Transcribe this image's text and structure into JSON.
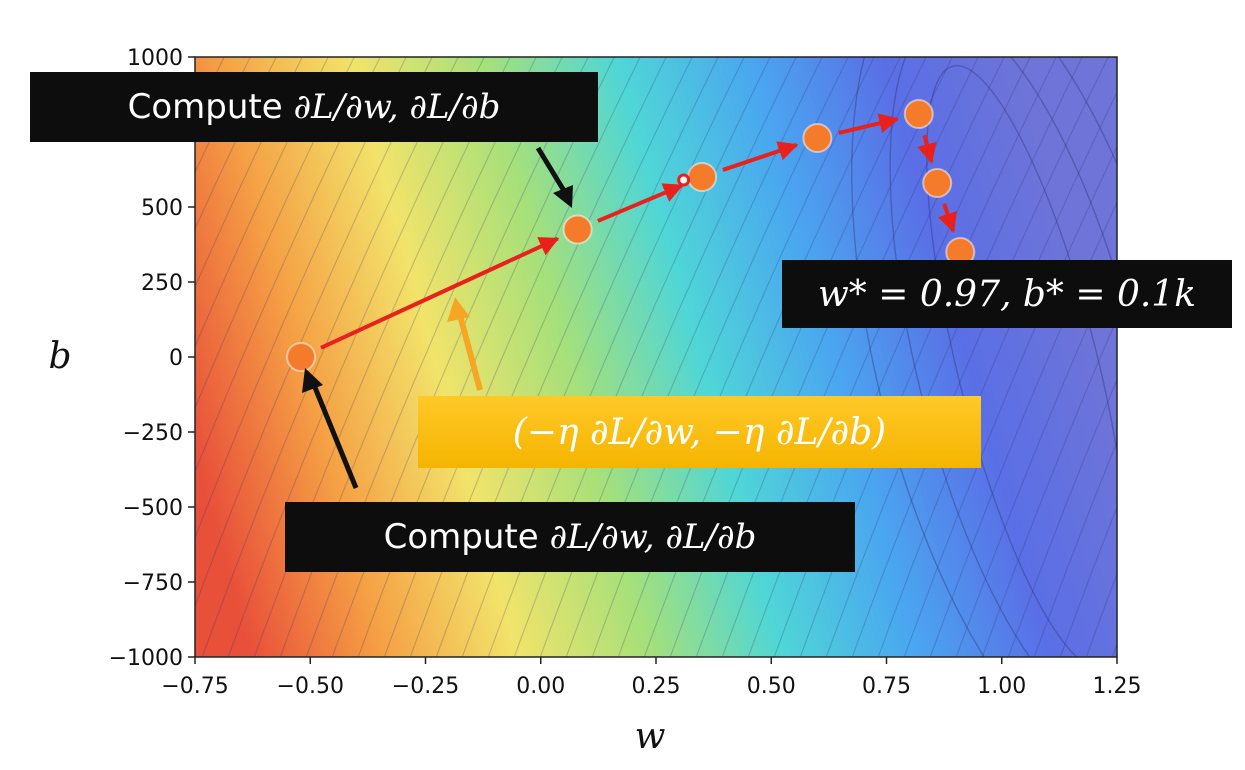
{
  "chart_data": {
    "type": "contour",
    "xlabel": "w",
    "ylabel": "b",
    "xlim": [
      -0.75,
      1.25
    ],
    "ylim": [
      -1000,
      1000
    ],
    "xticks": [
      -0.75,
      -0.5,
      -0.25,
      0.0,
      0.25,
      0.5,
      0.75,
      1.0,
      1.25
    ],
    "xtick_labels": [
      "−0.75",
      "−0.50",
      "−0.25",
      "0.00",
      "0.25",
      "0.50",
      "0.75",
      "1.00",
      "1.25"
    ],
    "yticks": [
      1000,
      750,
      500,
      250,
      0,
      -250,
      -500,
      -750,
      -1000
    ],
    "ytick_labels": [
      "1000",
      "750",
      "500",
      "250",
      "0",
      "−250",
      "−500",
      "−750",
      "−1000"
    ],
    "colormap": [
      "#e8503a",
      "#f5a044",
      "#f2e36a",
      "#a6e07a",
      "#4fd6d6",
      "#4aa6f0",
      "#5a6fe6",
      "#6e74d8"
    ],
    "grid": false,
    "path": {
      "w": [
        -0.52,
        0.08,
        0.35,
        0.6,
        0.82,
        0.86,
        0.91
      ],
      "b": [
        0,
        425,
        600,
        730,
        810,
        580,
        350
      ]
    },
    "initial_marker": {
      "w": 0.31,
      "b": 590
    },
    "path_color": "#e8211d",
    "point_color": "#f47b2a",
    "minimum": {
      "w": 0.97,
      "b": 100
    }
  },
  "annotations": {
    "compute_top": {
      "prefix": "Compute ",
      "math": "∂L/∂w, ∂L/∂b"
    },
    "compute_bottom": {
      "prefix": "Compute ",
      "math": "∂L/∂w, ∂L/∂b"
    },
    "update": {
      "math": "(−η ∂L/∂w, −η ∂L/∂b)"
    },
    "result": {
      "math": "w* = 0.97, b* = 0.1k"
    }
  },
  "colors": {
    "dark_box": "#0d0d0d",
    "gold_box": "#f5b400",
    "gold_arrow": "#f5a623",
    "black_arrow": "#111111"
  }
}
